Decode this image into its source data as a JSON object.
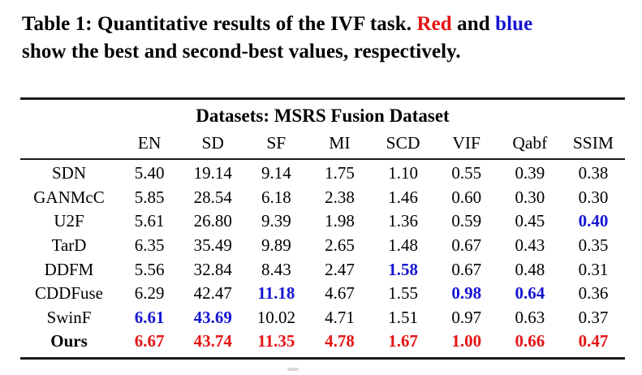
{
  "caption": {
    "segments": [
      {
        "text": "Table 1: Quantitative results of the IVF task. ",
        "color": "black"
      },
      {
        "text": "Red",
        "color": "red"
      },
      {
        "text": " and ",
        "color": "black"
      },
      {
        "text": "blue",
        "color": "blue"
      }
    ],
    "line2": "show the best and second-best values, respectively."
  },
  "colors": {
    "best_red": "#e61414",
    "second_best_blue": "#1414d2",
    "rule": "#1c1c1c",
    "text": "#000000"
  },
  "table": {
    "group_header": "Datasets: MSRS Fusion Dataset",
    "columns": [
      "EN",
      "SD",
      "SF",
      "MI",
      "SCD",
      "VIF",
      "Qabf",
      "SSIM"
    ],
    "highlight_legend": {
      "best": "red",
      "second_best": "blue"
    },
    "rows": [
      {
        "method": "SDN",
        "method_bold": false,
        "cells": [
          {
            "v": "5.40"
          },
          {
            "v": "19.14"
          },
          {
            "v": "9.14"
          },
          {
            "v": "1.75"
          },
          {
            "v": "1.10"
          },
          {
            "v": "0.55"
          },
          {
            "v": "0.39"
          },
          {
            "v": "0.38"
          }
        ]
      },
      {
        "method": "GANMcC",
        "method_bold": false,
        "cells": [
          {
            "v": "5.85"
          },
          {
            "v": "28.54"
          },
          {
            "v": "6.18"
          },
          {
            "v": "2.38"
          },
          {
            "v": "1.46"
          },
          {
            "v": "0.60"
          },
          {
            "v": "0.30"
          },
          {
            "v": "0.30"
          }
        ]
      },
      {
        "method": "U2F",
        "method_bold": false,
        "cells": [
          {
            "v": "5.61"
          },
          {
            "v": "26.80"
          },
          {
            "v": "9.39"
          },
          {
            "v": "1.98"
          },
          {
            "v": "1.36"
          },
          {
            "v": "0.59"
          },
          {
            "v": "0.45"
          },
          {
            "v": "0.40",
            "h": "second"
          }
        ]
      },
      {
        "method": "TarD",
        "method_bold": false,
        "cells": [
          {
            "v": "6.35"
          },
          {
            "v": "35.49"
          },
          {
            "v": "9.89"
          },
          {
            "v": "2.65"
          },
          {
            "v": "1.48"
          },
          {
            "v": "0.67"
          },
          {
            "v": "0.43"
          },
          {
            "v": "0.35"
          }
        ]
      },
      {
        "method": "DDFM",
        "method_bold": false,
        "cells": [
          {
            "v": "5.56"
          },
          {
            "v": "32.84"
          },
          {
            "v": "8.43"
          },
          {
            "v": "2.47"
          },
          {
            "v": "1.58",
            "h": "second"
          },
          {
            "v": "0.67"
          },
          {
            "v": "0.48"
          },
          {
            "v": "0.31"
          }
        ]
      },
      {
        "method": "CDDFuse",
        "method_bold": false,
        "cells": [
          {
            "v": "6.29"
          },
          {
            "v": "42.47"
          },
          {
            "v": "11.18",
            "h": "second"
          },
          {
            "v": "4.67"
          },
          {
            "v": "1.55"
          },
          {
            "v": "0.98",
            "h": "second"
          },
          {
            "v": "0.64",
            "h": "second"
          },
          {
            "v": "0.36"
          }
        ]
      },
      {
        "method": "SwinF",
        "method_bold": false,
        "cells": [
          {
            "v": "6.61",
            "h": "second"
          },
          {
            "v": "43.69",
            "h": "second"
          },
          {
            "v": "10.02"
          },
          {
            "v": "4.71"
          },
          {
            "v": "1.51"
          },
          {
            "v": "0.97"
          },
          {
            "v": "0.63"
          },
          {
            "v": "0.37"
          }
        ]
      },
      {
        "method": "Ours",
        "method_bold": true,
        "cells": [
          {
            "v": "6.67",
            "h": "best"
          },
          {
            "v": "43.74",
            "h": "best"
          },
          {
            "v": "11.35",
            "h": "best"
          },
          {
            "v": "4.78",
            "h": "best"
          },
          {
            "v": "1.67",
            "h": "best"
          },
          {
            "v": "1.00",
            "h": "best"
          },
          {
            "v": "0.66",
            "h": "best"
          },
          {
            "v": "0.47",
            "h": "best"
          }
        ]
      }
    ]
  }
}
